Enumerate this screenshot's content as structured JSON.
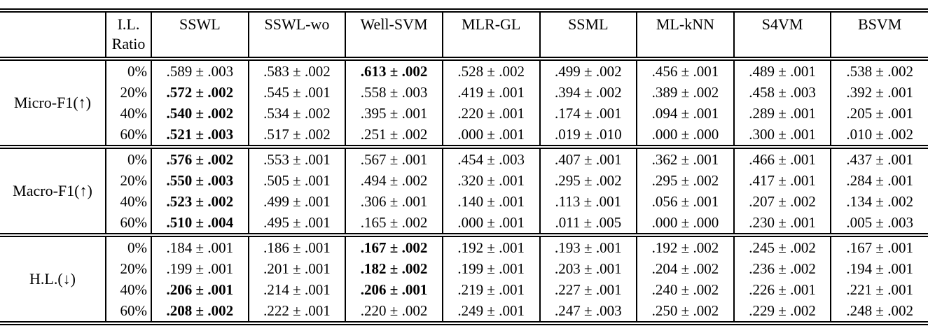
{
  "table": {
    "corner_label": "",
    "il_ratio_header_line1": "I.L.",
    "il_ratio_header_line2": "Ratio",
    "method_headers": [
      "SSWL",
      "SSWL-wo",
      "Well-SVM",
      "MLR-GL",
      "SSML",
      "ML-kNN",
      "S4VM",
      "BSVM"
    ],
    "groups": [
      {
        "label": "Micro-F1(↑)",
        "rows": [
          {
            "ratio": "0%",
            "values": [
              ".589 ± .003",
              ".583 ± .002",
              ".613 ± .002",
              ".528 ± .002",
              ".499 ± .002",
              ".456 ± .001",
              ".489 ± .001",
              ".538 ± .002"
            ],
            "bold": [
              2
            ]
          },
          {
            "ratio": "20%",
            "values": [
              ".572 ± .002",
              ".545 ± .001",
              ".558 ± .003",
              ".419 ± .001",
              ".394 ± .002",
              ".389 ± .002",
              ".458 ± .003",
              ".392 ± .001"
            ],
            "bold": [
              0
            ]
          },
          {
            "ratio": "40%",
            "values": [
              ".540 ± .002",
              ".534 ± .002",
              ".395 ± .001",
              ".220 ± .001",
              ".174 ± .001",
              ".094 ± .001",
              ".289 ± .001",
              ".205 ± .001"
            ],
            "bold": [
              0
            ]
          },
          {
            "ratio": "60%",
            "values": [
              ".521 ± .003",
              ".517 ± .002",
              ".251 ± .002",
              ".000 ± .001",
              ".019 ± .010",
              ".000 ± .000",
              ".300 ± .001",
              ".010 ± .002"
            ],
            "bold": [
              0
            ]
          }
        ]
      },
      {
        "label": "Macro-F1(↑)",
        "rows": [
          {
            "ratio": "0%",
            "values": [
              ".576 ± .002",
              ".553 ± .001",
              ".567 ± .001",
              ".454 ± .003",
              ".407 ± .001",
              ".362 ± .001",
              ".466 ± .001",
              ".437 ± .001"
            ],
            "bold": [
              0
            ]
          },
          {
            "ratio": "20%",
            "values": [
              ".550 ± .003",
              ".505 ± .001",
              ".494 ± .002",
              ".320 ± .001",
              ".295 ± .002",
              ".295 ± .002",
              ".417 ± .001",
              ".284 ± .001"
            ],
            "bold": [
              0
            ]
          },
          {
            "ratio": "40%",
            "values": [
              ".523 ± .002",
              ".499 ± .001",
              ".306 ± .001",
              ".140 ± .001",
              ".113 ± .001",
              ".056 ± .001",
              ".207 ± .002",
              ".134 ± .002"
            ],
            "bold": [
              0
            ]
          },
          {
            "ratio": "60%",
            "values": [
              ".510 ± .004",
              ".495 ± .001",
              ".165 ± .002",
              ".000 ± .001",
              ".011 ± .005",
              ".000 ± .000",
              ".230 ± .001",
              ".005 ± .003"
            ],
            "bold": [
              0
            ]
          }
        ]
      },
      {
        "label": "H.L.(↓)",
        "rows": [
          {
            "ratio": "0%",
            "values": [
              ".184 ± .001",
              ".186 ± .001",
              ".167 ± .002",
              ".192 ± .001",
              ".193 ± .001",
              ".192 ± .002",
              ".245 ± .002",
              ".167 ± .001"
            ],
            "bold": [
              2
            ]
          },
          {
            "ratio": "20%",
            "values": [
              ".199 ± .001",
              ".201 ± .001",
              ".182 ± .002",
              ".199 ± .001",
              ".203 ± .001",
              ".204 ± .002",
              ".236 ± .002",
              ".194 ± .001"
            ],
            "bold": [
              2
            ]
          },
          {
            "ratio": "40%",
            "values": [
              ".206 ± .001",
              ".214 ± .001",
              ".206 ± .001",
              ".219 ± .001",
              ".227 ± .001",
              ".240 ± .002",
              ".226 ± .001",
              ".221 ± .001"
            ],
            "bold": [
              0,
              2
            ]
          },
          {
            "ratio": "60%",
            "values": [
              ".208 ± .002",
              ".222 ± .001",
              ".220 ± .002",
              ".249 ± .001",
              ".247 ± .003",
              ".250 ± .002",
              ".229 ± .002",
              ".248 ± .002"
            ],
            "bold": [
              0
            ]
          }
        ]
      }
    ]
  }
}
